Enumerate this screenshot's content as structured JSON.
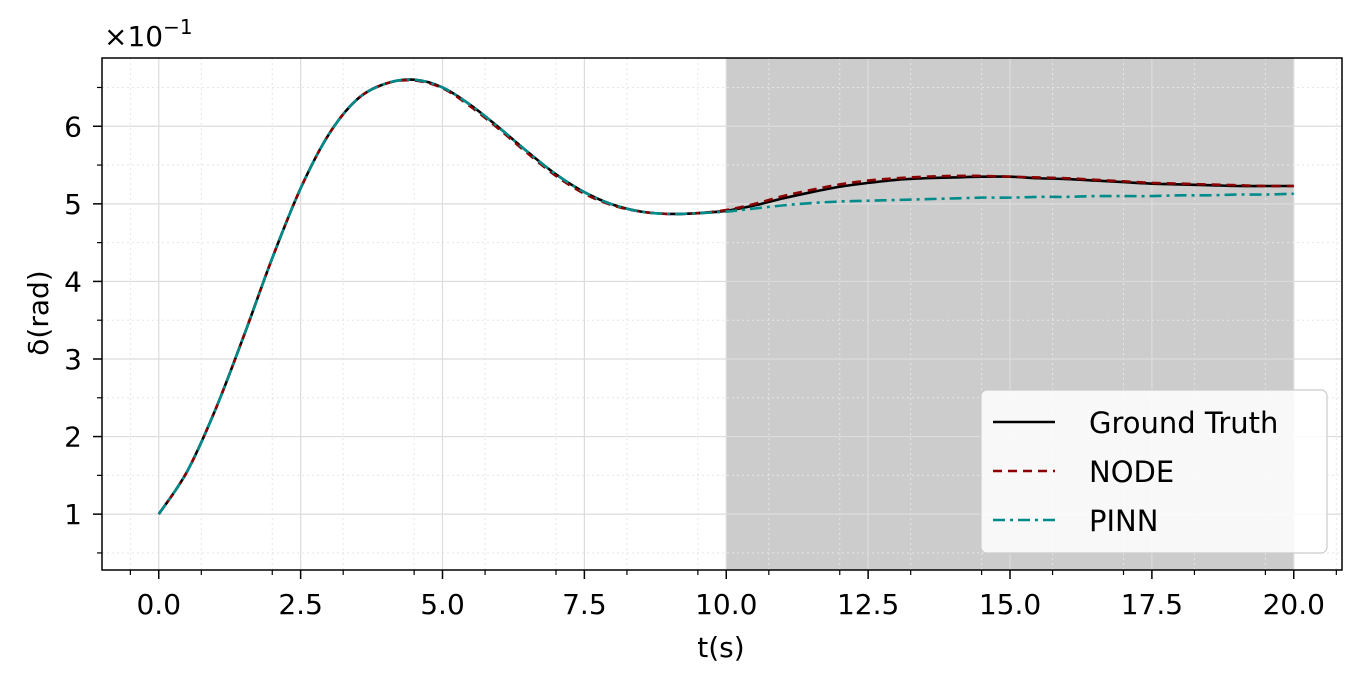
{
  "chart_data": {
    "type": "line",
    "title": "",
    "xlabel": "t(s)",
    "ylabel": "δ(rad)",
    "xlim": [
      -1.0,
      20.85
    ],
    "ylim": [
      0.28,
      6.88
    ],
    "y_scale_note": "×10",
    "y_scale_exponent": "−1",
    "grid": "on",
    "shaded_region": {
      "x_start": 10.0,
      "x_end": 20.0,
      "color": "#cccccc"
    },
    "x_ticks": [
      {
        "v": 0.0,
        "label": "0.0"
      },
      {
        "v": 2.5,
        "label": "2.5"
      },
      {
        "v": 5.0,
        "label": "5.0"
      },
      {
        "v": 7.5,
        "label": "7.5"
      },
      {
        "v": 10.0,
        "label": "10.0"
      },
      {
        "v": 12.5,
        "label": "12.5"
      },
      {
        "v": 15.0,
        "label": "15.0"
      },
      {
        "v": 17.5,
        "label": "17.5"
      },
      {
        "v": 20.0,
        "label": "20.0"
      }
    ],
    "y_ticks": [
      {
        "v": 1,
        "label": "1"
      },
      {
        "v": 2,
        "label": "2"
      },
      {
        "v": 3,
        "label": "3"
      },
      {
        "v": 4,
        "label": "4"
      },
      {
        "v": 5,
        "label": "5"
      },
      {
        "v": 6,
        "label": "6"
      }
    ],
    "legend_position": "bottom-right",
    "x": [
      0.0,
      0.5,
      1.0,
      1.5,
      2.0,
      2.5,
      3.0,
      3.5,
      4.0,
      4.5,
      5.0,
      5.5,
      6.0,
      6.5,
      7.0,
      7.5,
      8.0,
      8.5,
      9.0,
      9.5,
      10.0,
      10.5,
      11.0,
      11.5,
      12.0,
      12.5,
      13.0,
      13.5,
      14.0,
      14.5,
      15.0,
      15.5,
      16.0,
      16.5,
      17.0,
      17.5,
      18.0,
      18.5,
      19.0,
      19.5,
      20.0
    ],
    "series": [
      {
        "name": "Ground Truth",
        "color": "#000000",
        "dash": "solid",
        "values": [
          1.0,
          1.55,
          2.35,
          3.3,
          4.3,
          5.2,
          5.9,
          6.35,
          6.55,
          6.6,
          6.5,
          6.27,
          5.98,
          5.67,
          5.38,
          5.15,
          4.99,
          4.9,
          4.87,
          4.88,
          4.91,
          4.98,
          5.07,
          5.15,
          5.22,
          5.27,
          5.31,
          5.33,
          5.34,
          5.35,
          5.35,
          5.33,
          5.32,
          5.3,
          5.28,
          5.26,
          5.25,
          5.24,
          5.23,
          5.23,
          5.23
        ]
      },
      {
        "name": "NODE",
        "color": "#8b0000",
        "dash": "dashed",
        "values": [
          1.0,
          1.55,
          2.35,
          3.3,
          4.3,
          5.2,
          5.9,
          6.35,
          6.55,
          6.59,
          6.49,
          6.25,
          5.96,
          5.65,
          5.36,
          5.13,
          4.98,
          4.9,
          4.87,
          4.88,
          4.92,
          5.0,
          5.1,
          5.18,
          5.25,
          5.3,
          5.33,
          5.35,
          5.36,
          5.36,
          5.35,
          5.34,
          5.33,
          5.31,
          5.29,
          5.27,
          5.26,
          5.25,
          5.24,
          5.23,
          5.23
        ]
      },
      {
        "name": "PINN",
        "color": "#008b8b",
        "dash": "dashdot",
        "values": [
          1.0,
          1.55,
          2.35,
          3.3,
          4.3,
          5.2,
          5.9,
          6.35,
          6.55,
          6.6,
          6.5,
          6.27,
          5.98,
          5.67,
          5.38,
          5.15,
          4.99,
          4.9,
          4.87,
          4.88,
          4.9,
          4.94,
          4.98,
          5.01,
          5.03,
          5.04,
          5.05,
          5.06,
          5.07,
          5.08,
          5.08,
          5.09,
          5.09,
          5.1,
          5.1,
          5.1,
          5.11,
          5.11,
          5.12,
          5.12,
          5.13
        ]
      }
    ]
  }
}
